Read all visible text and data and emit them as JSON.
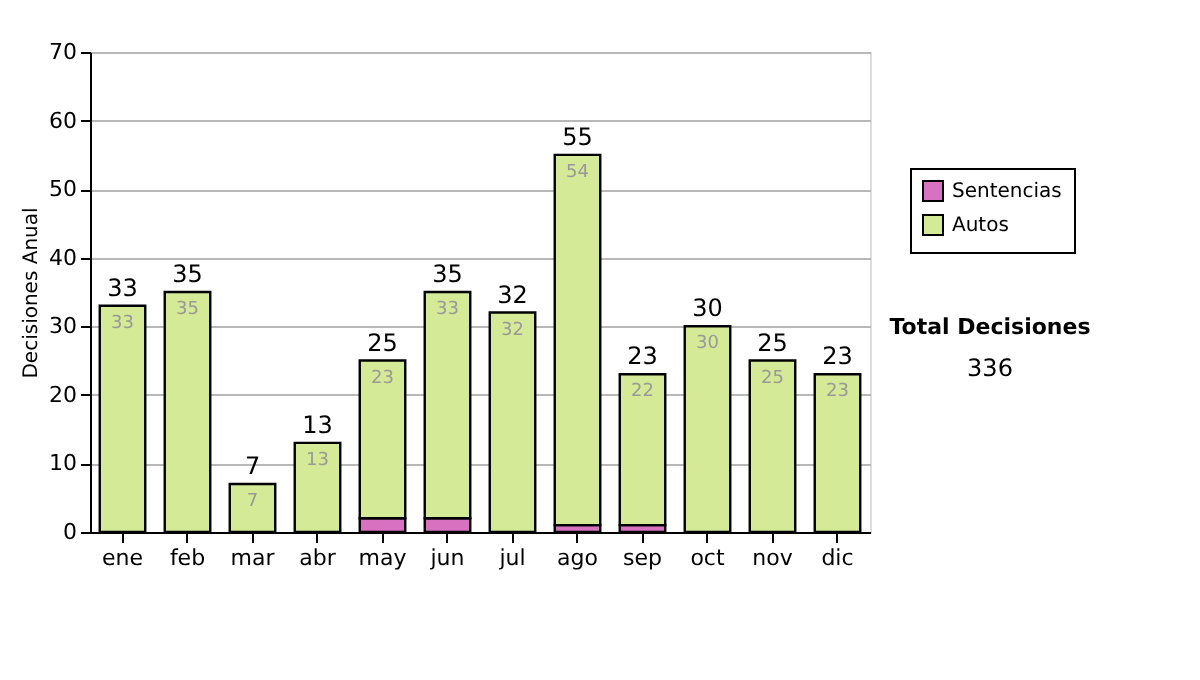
{
  "chart_data": {
    "type": "bar",
    "stacked": true,
    "ylabel": "Decisiones Anual",
    "categories": [
      "ene",
      "feb",
      "mar",
      "abr",
      "may",
      "jun",
      "jul",
      "ago",
      "sep",
      "oct",
      "nov",
      "dic"
    ],
    "series": [
      {
        "name": "Sentencias",
        "color": "#d872c0",
        "values": [
          0,
          0,
          0,
          0,
          2,
          2,
          0,
          1,
          1,
          0,
          0,
          0
        ]
      },
      {
        "name": "Autos",
        "color": "#d4ea96",
        "values": [
          33,
          35,
          7,
          13,
          23,
          33,
          32,
          54,
          22,
          30,
          25,
          23
        ],
        "value_labels": [
          "33",
          "35",
          "7",
          "13",
          "23",
          "33",
          "32",
          "54",
          "22",
          "30",
          "25",
          "23"
        ]
      }
    ],
    "totals": [
      "33",
      "35",
      "7",
      "13",
      "25",
      "35",
      "32",
      "55",
      "23",
      "30",
      "25",
      "23"
    ],
    "ylim": [
      0,
      70
    ],
    "yticks": [
      0,
      10,
      20,
      30,
      40,
      50,
      60,
      70
    ],
    "grid": "y",
    "legend": "right",
    "annotations": [
      "Total Decisiones",
      "336"
    ]
  }
}
